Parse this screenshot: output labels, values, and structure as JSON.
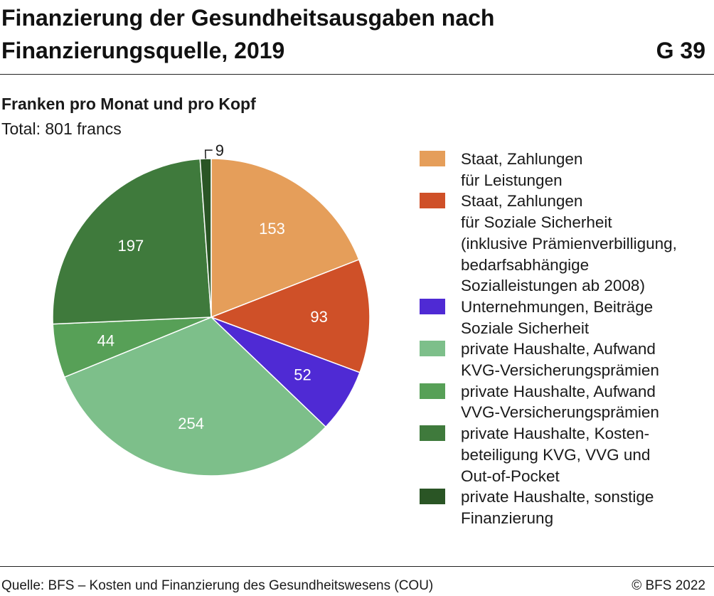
{
  "header": {
    "title": "Finanzierung der Gesundheitsausgaben nach Finanzierungsquelle, 2019",
    "figure_number": "G 39"
  },
  "chart_data": {
    "type": "pie",
    "title": "Finanzierung der Gesundheitsausgaben nach Finanzierungsquelle, 2019",
    "subtitle": "Franken pro Monat und pro Kopf",
    "total_label": "Total: 801 francs",
    "series": [
      {
        "name": "Staat, Zahlungen\nfür Leistungen",
        "value": 153,
        "label": "153",
        "color": "#e59e5a"
      },
      {
        "name": "Staat, Zahlungen\nfür Soziale Sicherheit\n(inklusive Prämienverbilligung,\nbedarfsabhängige\nSozialleistungen ab 2008)",
        "value": 93,
        "label": "93",
        "color": "#cf5028"
      },
      {
        "name": "Unternehmungen, Beiträge\nSoziale Sicherheit",
        "value": 52,
        "label": "52",
        "color": "#4f2ad4"
      },
      {
        "name": "private Haushalte, Aufwand\nKVG-Versicherungsprämien",
        "value": 254,
        "label": "254",
        "color": "#7dbf8a"
      },
      {
        "name": "private Haushalte, Aufwand\nVVG-Versicherungsprämien",
        "value": 44,
        "label": "44",
        "color": "#57a057"
      },
      {
        "name": "private Haushalte, Kosten-\nbeteiligung KVG, VVG und\nOut-of-Pocket",
        "value": 197,
        "label": "197",
        "color": "#3f7a3c"
      },
      {
        "name": "private Haushalte, sonstige\nFinanzierung",
        "value": 9,
        "label": "9",
        "color": "#2a5525"
      }
    ],
    "start_angle": "12 o'clock",
    "direction": "clockwise",
    "legend_position": "right"
  },
  "footer": {
    "source": "Quelle: BFS – Kosten und Finanzierung des Gesundheitswesens (COU)",
    "copyright": "© BFS 2022"
  }
}
